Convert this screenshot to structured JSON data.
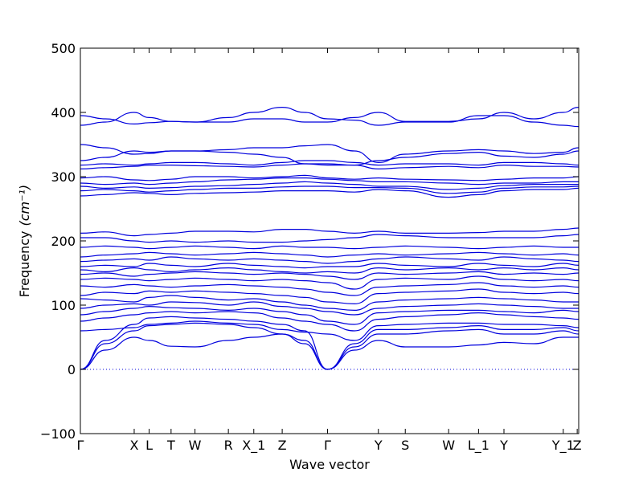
{
  "chart_data": {
    "type": "line",
    "title": "",
    "xlabel": "Wave vector",
    "ylabel": "Frequency",
    "ylabel_unit": "(cm⁻¹)",
    "ylim": [
      -100,
      500
    ],
    "yticks": [
      -100,
      0,
      100,
      200,
      300,
      400,
      500
    ],
    "xlim": [
      0,
      10
    ],
    "x_ticks": [
      {
        "label": "Γ",
        "x": 0.0
      },
      {
        "label": "X",
        "x": 1.08
      },
      {
        "label": "L",
        "x": 1.38
      },
      {
        "label": "T",
        "x": 1.82
      },
      {
        "label": "W",
        "x": 2.3
      },
      {
        "label": "R",
        "x": 2.97
      },
      {
        "label": "X_1",
        "x": 3.48
      },
      {
        "label": "Z",
        "x": 4.05
      },
      {
        "label": "Γ",
        "x": 4.96
      },
      {
        "label": "Y",
        "x": 5.98
      },
      {
        "label": "S",
        "x": 6.52
      },
      {
        "label": "W",
        "x": 7.39
      },
      {
        "label": "L_1",
        "x": 7.99
      },
      {
        "label": "Y",
        "x": 8.5
      },
      {
        "label": "Y_1",
        "x": 9.69
      },
      {
        "label": "Z",
        "x": 9.97
      }
    ],
    "zero_line": true,
    "line_color": "#0000dd",
    "grid": false,
    "legend": "none",
    "series_x": [
      0,
      0.5,
      1.08,
      1.38,
      1.82,
      2.3,
      2.97,
      3.48,
      4.05,
      4.5,
      4.96,
      5.5,
      5.98,
      6.52,
      7.39,
      7.99,
      8.5,
      9.1,
      9.69,
      10.0
    ],
    "series": [
      {
        "values": [
          0,
          30,
          50,
          45,
          36,
          35,
          45,
          50,
          55,
          40,
          0,
          30,
          45,
          35,
          35,
          38,
          42,
          40,
          50,
          50
        ]
      },
      {
        "values": [
          0,
          40,
          60,
          68,
          70,
          72,
          70,
          65,
          55,
          45,
          0,
          35,
          55,
          55,
          60,
          62,
          55,
          55,
          60,
          55
        ]
      },
      {
        "values": [
          0,
          45,
          70,
          80,
          82,
          80,
          78,
          75,
          70,
          60,
          0,
          40,
          62,
          62,
          65,
          68,
          62,
          62,
          65,
          60
        ]
      },
      {
        "values": [
          60,
          62,
          65,
          70,
          72,
          75,
          72,
          70,
          62,
          58,
          55,
          45,
          68,
          70,
          72,
          72,
          70,
          70,
          68,
          65
        ]
      },
      {
        "values": [
          75,
          80,
          85,
          88,
          90,
          88,
          90,
          88,
          80,
          75,
          70,
          60,
          78,
          82,
          85,
          88,
          85,
          82,
          80,
          78
        ]
      },
      {
        "values": [
          85,
          90,
          95,
          98,
          96,
          95,
          92,
          95,
          90,
          85,
          75,
          70,
          88,
          90,
          92,
          92,
          90,
          88,
          92,
          90
        ]
      },
      {
        "values": [
          95,
          100,
          102,
          100,
          105,
          104,
          100,
          105,
          98,
          95,
          90,
          85,
          95,
          98,
          100,
          102,
          100,
          98,
          95,
          95
        ]
      },
      {
        "values": [
          110,
          108,
          105,
          112,
          115,
          112,
          108,
          110,
          105,
          100,
          95,
          92,
          105,
          108,
          110,
          112,
          110,
          108,
          105,
          105
        ]
      },
      {
        "values": [
          115,
          120,
          118,
          122,
          120,
          122,
          120,
          118,
          115,
          112,
          105,
          102,
          118,
          120,
          122,
          125,
          120,
          118,
          120,
          118
        ]
      },
      {
        "values": [
          130,
          128,
          132,
          130,
          128,
          130,
          132,
          130,
          128,
          125,
          120,
          115,
          128,
          130,
          132,
          135,
          130,
          128,
          130,
          128
        ]
      },
      {
        "values": [
          140,
          142,
          140,
          138,
          140,
          142,
          140,
          138,
          140,
          138,
          135,
          125,
          140,
          142,
          140,
          145,
          140,
          138,
          140,
          138
        ]
      },
      {
        "values": [
          148,
          150,
          145,
          148,
          150,
          152,
          150,
          148,
          150,
          148,
          145,
          140,
          150,
          148,
          150,
          152,
          148,
          150,
          148,
          150
        ]
      },
      {
        "values": [
          155,
          152,
          158,
          155,
          152,
          155,
          158,
          155,
          152,
          150,
          152,
          150,
          158,
          155,
          158,
          155,
          158,
          155,
          158,
          155
        ]
      },
      {
        "values": [
          160,
          162,
          160,
          165,
          162,
          160,
          165,
          162,
          160,
          158,
          160,
          160,
          165,
          162,
          160,
          165,
          162,
          160,
          165,
          162
        ]
      },
      {
        "values": [
          168,
          170,
          172,
          170,
          175,
          172,
          170,
          172,
          170,
          168,
          165,
          168,
          172,
          175,
          172,
          170,
          175,
          172,
          170,
          168
        ]
      },
      {
        "values": [
          175,
          178,
          180,
          182,
          180,
          178,
          180,
          182,
          180,
          178,
          175,
          178,
          180,
          178,
          180,
          182,
          180,
          178,
          180,
          178
        ]
      },
      {
        "values": [
          190,
          192,
          190,
          188,
          190,
          192,
          190,
          188,
          192,
          190,
          190,
          188,
          190,
          192,
          190,
          188,
          190,
          192,
          190,
          190
        ]
      },
      {
        "values": [
          205,
          205,
          200,
          198,
          200,
          198,
          200,
          198,
          198,
          200,
          202,
          205,
          210,
          208,
          205,
          205,
          205,
          205,
          208,
          210
        ]
      },
      {
        "values": [
          212,
          214,
          208,
          210,
          212,
          215,
          215,
          214,
          218,
          218,
          215,
          212,
          215,
          212,
          212,
          213,
          215,
          215,
          218,
          220
        ]
      },
      {
        "values": [
          270,
          272,
          275,
          274,
          272,
          274,
          275,
          276,
          278,
          278,
          278,
          276,
          280,
          278,
          268,
          272,
          278,
          280,
          280,
          282
        ]
      },
      {
        "values": [
          278,
          280,
          278,
          276,
          278,
          280,
          282,
          282,
          284,
          285,
          285,
          283,
          283,
          282,
          274,
          276,
          282,
          284,
          284,
          285
        ]
      },
      {
        "values": [
          285,
          282,
          284,
          282,
          283,
          285,
          286,
          288,
          290,
          292,
          290,
          288,
          285,
          285,
          280,
          282,
          286,
          288,
          288,
          288
        ]
      },
      {
        "values": [
          290,
          288,
          290,
          288,
          290,
          292,
          295,
          296,
          298,
          298,
          296,
          294,
          292,
          292,
          290,
          288,
          290,
          290,
          292,
          292
        ]
      },
      {
        "values": [
          298,
          300,
          295,
          294,
          296,
          300,
          300,
          298,
          300,
          302,
          298,
          296,
          298,
          296,
          295,
          294,
          296,
          298,
          298,
          300
        ]
      },
      {
        "values": [
          312,
          314,
          316,
          318,
          318,
          317,
          316,
          315,
          318,
          320,
          320,
          318,
          312,
          314,
          316,
          314,
          318,
          316,
          316,
          315
        ]
      },
      {
        "values": [
          318,
          320,
          318,
          320,
          322,
          322,
          320,
          318,
          322,
          325,
          325,
          322,
          318,
          320,
          320,
          318,
          322,
          322,
          320,
          318
        ]
      },
      {
        "values": [
          325,
          330,
          340,
          338,
          340,
          340,
          338,
          335,
          330,
          320,
          318,
          318,
          325,
          330,
          336,
          338,
          332,
          330,
          335,
          340
        ]
      },
      {
        "values": [
          350,
          345,
          335,
          336,
          340,
          340,
          342,
          345,
          345,
          348,
          350,
          340,
          322,
          335,
          340,
          342,
          340,
          336,
          338,
          345
        ]
      },
      {
        "values": [
          380,
          385,
          400,
          392,
          386,
          385,
          385,
          390,
          390,
          385,
          385,
          392,
          400,
          386,
          386,
          390,
          400,
          390,
          400,
          408
        ]
      },
      {
        "values": [
          395,
          390,
          382,
          384,
          386,
          385,
          392,
          400,
          408,
          400,
          390,
          388,
          380,
          385,
          385,
          395,
          395,
          385,
          380,
          378
        ]
      }
    ]
  }
}
